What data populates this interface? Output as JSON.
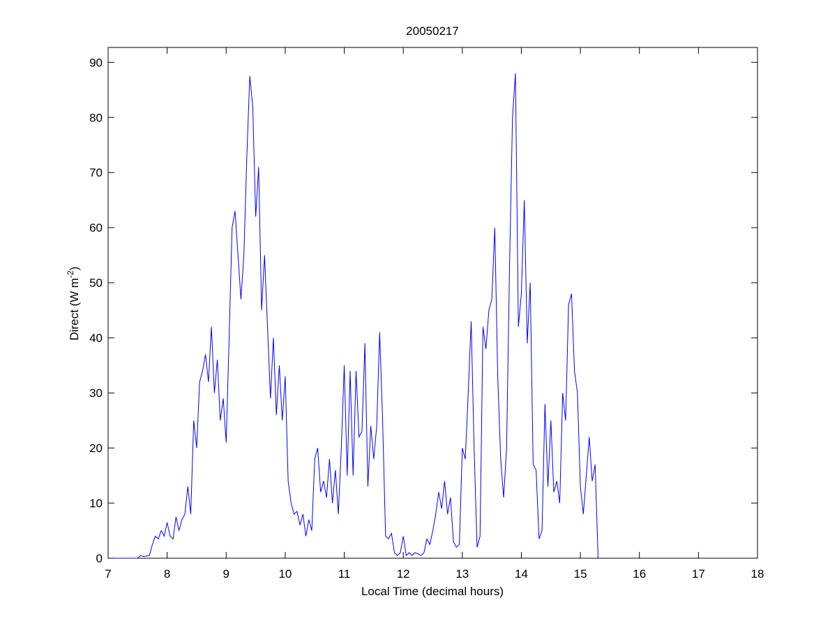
{
  "chart_data": {
    "type": "line",
    "title": "20050217",
    "xlabel": "Local Time (decimal hours)",
    "ylabel_parts": [
      "Direct (W m",
      "-2",
      ")"
    ],
    "color": "#0000ff",
    "xlim": [
      7,
      18
    ],
    "xticks": [
      7,
      8,
      9,
      10,
      11,
      12,
      13,
      14,
      15,
      16,
      17,
      18
    ],
    "ylim": [
      0,
      92.7
    ],
    "yticks": [
      0,
      10,
      20,
      30,
      40,
      50,
      60,
      70,
      80,
      90
    ],
    "grid": false,
    "x": [
      7.1,
      7.15,
      7.2,
      7.25,
      7.3,
      7.35,
      7.4,
      7.45,
      7.5,
      7.55,
      7.6,
      7.65,
      7.7,
      7.75,
      7.8,
      7.85,
      7.9,
      7.95,
      8.0,
      8.05,
      8.1,
      8.15,
      8.2,
      8.25,
      8.3,
      8.35,
      8.4,
      8.45,
      8.5,
      8.55,
      8.6,
      8.65,
      8.7,
      8.75,
      8.8,
      8.85,
      8.9,
      8.95,
      9.0,
      9.05,
      9.1,
      9.15,
      9.2,
      9.25,
      9.3,
      9.35,
      9.4,
      9.45,
      9.5,
      9.55,
      9.6,
      9.65,
      9.7,
      9.75,
      9.8,
      9.85,
      9.9,
      9.95,
      10.0,
      10.05,
      10.1,
      10.15,
      10.2,
      10.25,
      10.3,
      10.35,
      10.4,
      10.45,
      10.5,
      10.55,
      10.6,
      10.65,
      10.7,
      10.75,
      10.8,
      10.85,
      10.9,
      10.95,
      11.0,
      11.05,
      11.1,
      11.15,
      11.2,
      11.25,
      11.3,
      11.35,
      11.4,
      11.45,
      11.5,
      11.55,
      11.6,
      11.65,
      11.7,
      11.75,
      11.8,
      11.85,
      11.9,
      11.95,
      12.0,
      12.05,
      12.1,
      12.15,
      12.2,
      12.25,
      12.3,
      12.35,
      12.4,
      12.45,
      12.5,
      12.55,
      12.6,
      12.65,
      12.7,
      12.75,
      12.8,
      12.85,
      12.9,
      12.95,
      13.0,
      13.05,
      13.1,
      13.15,
      13.2,
      13.25,
      13.3,
      13.35,
      13.4,
      13.45,
      13.5,
      13.55,
      13.6,
      13.65,
      13.7,
      13.75,
      13.8,
      13.85,
      13.9,
      13.95,
      14.0,
      14.05,
      14.1,
      14.15,
      14.2,
      14.25,
      14.3,
      14.35,
      14.4,
      14.45,
      14.5,
      14.55,
      14.6,
      14.65,
      14.7,
      14.75,
      14.8,
      14.85,
      14.9,
      14.95,
      15.0,
      15.05,
      15.1,
      15.15,
      15.2,
      15.25,
      15.3
    ],
    "values": [
      0,
      0,
      0,
      0,
      0,
      0,
      0,
      0,
      0,
      0.5,
      0.3,
      0.4,
      0.5,
      2.5,
      4,
      3.5,
      5,
      4,
      6.5,
      4,
      3.5,
      7.5,
      5,
      7,
      8,
      13,
      8,
      25,
      20,
      32,
      34,
      37,
      32,
      42,
      30,
      36,
      25,
      29,
      21,
      40,
      60,
      63,
      55,
      47,
      55,
      73,
      87.5,
      82,
      62,
      71,
      45,
      55,
      42,
      29,
      40,
      26,
      35,
      25,
      33,
      14,
      10,
      8,
      8.5,
      6,
      8,
      4,
      7,
      5,
      18,
      20,
      12,
      14,
      11,
      18,
      10,
      16,
      8,
      20,
      35,
      15,
      34,
      15,
      34,
      22,
      23,
      39,
      13,
      24,
      18,
      24,
      41,
      25,
      4,
      3.5,
      4.5,
      1,
      0.5,
      1,
      4,
      0.5,
      1,
      0.5,
      1,
      0.8,
      0.5,
      1,
      3.5,
      2.5,
      5,
      8,
      12,
      9,
      14,
      8,
      11,
      3,
      2,
      2.5,
      20,
      18,
      30,
      43,
      20,
      2,
      4,
      42,
      38,
      45,
      47,
      60,
      33,
      18,
      11,
      20,
      53,
      80,
      88,
      42,
      48,
      65,
      39,
      50,
      17,
      16,
      3.5,
      5,
      28,
      13,
      25,
      12,
      14,
      10,
      30,
      25,
      46,
      48,
      34,
      30,
      13,
      8,
      15,
      22,
      14,
      17,
      0
    ]
  }
}
